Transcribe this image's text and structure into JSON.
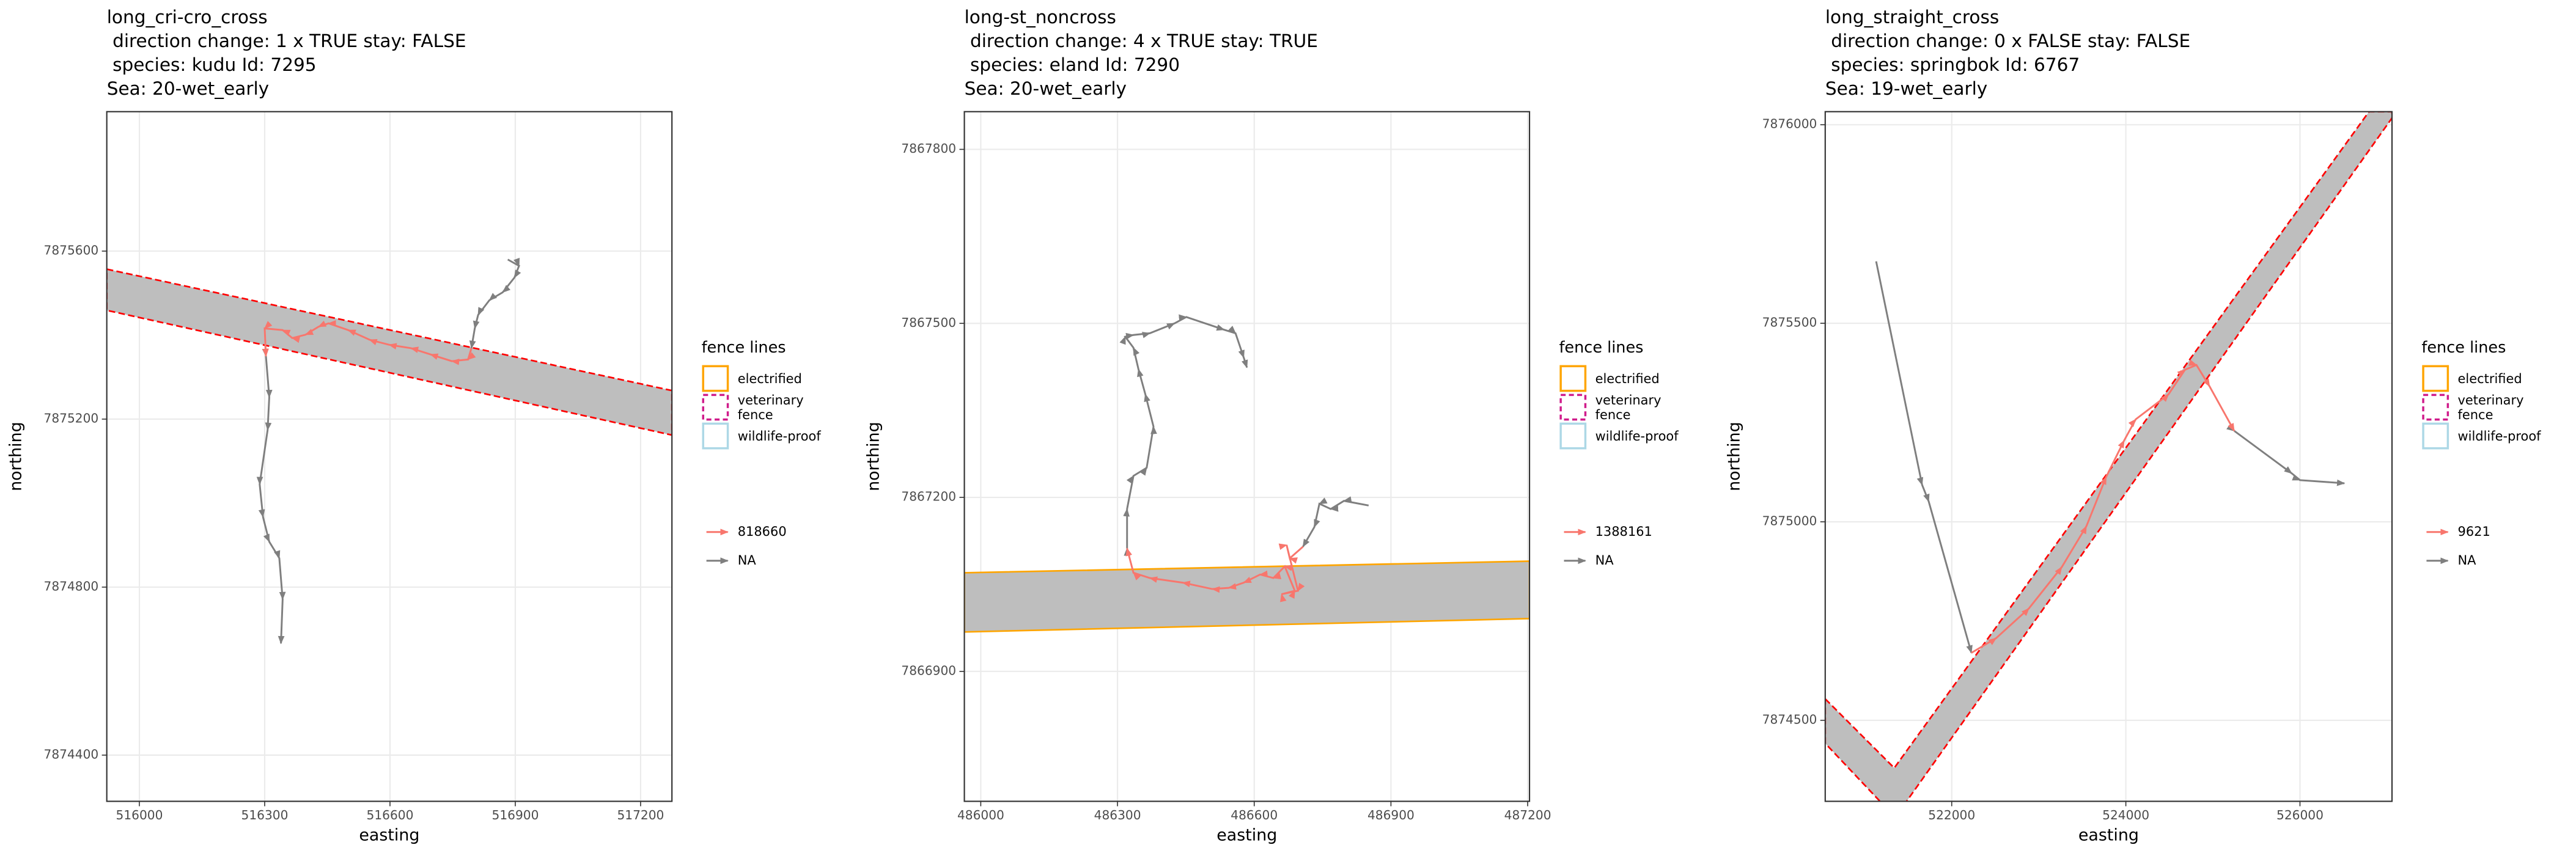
{
  "chart_data": [
    {
      "type": "line",
      "title": [
        "long_cri-cro_cross",
        " direction change: 1 x TRUE stay: FALSE",
        " species: kudu Id: 7295",
        "Sea: 20-wet_early"
      ],
      "x_label": "easting",
      "y_label": "northing",
      "xlim": [
        515922,
        517275
      ],
      "ylim": [
        7874290,
        7875932
      ],
      "xticks": [
        516000,
        516300,
        516600,
        516900,
        517200
      ],
      "yticks": [
        7874400,
        7874800,
        7875200,
        7875600
      ],
      "grid": true,
      "band": {
        "color": "#BEBEBE",
        "edge_color": "#FF0000",
        "dashed": true,
        "x": [
          515922,
          517275,
          517275,
          515922
        ],
        "y": [
          7875557,
          7875268,
          7875162,
          7875459
        ]
      },
      "legend": {
        "title": "fence lines",
        "entries": [
          {
            "label": "electrified",
            "color": "#FFA500",
            "dashed": false
          },
          {
            "label": "veterinary\nfence",
            "color": "#D01C8B",
            "dashed": true
          },
          {
            "label": "wildlife-proof",
            "color": "#ADD8E6",
            "dashed": false
          }
        ]
      },
      "series": [
        {
          "name": "818660",
          "color": "#F8766D",
          "x": [
            516795,
            516787,
            516748,
            516697,
            516650,
            516598,
            516551,
            516500,
            516453,
            516429,
            516398,
            516366,
            516343,
            516300,
            516303
          ],
          "y": [
            7875369,
            7875342,
            7875338,
            7875354,
            7875369,
            7875377,
            7875389,
            7875412,
            7875428,
            7875420,
            7875401,
            7875393,
            7875412,
            7875416,
            7875350
          ]
        },
        {
          "name": "NA",
          "color": "#7F7F7F",
          "x": [
            516882,
            516909,
            516898,
            516870,
            516838,
            516811,
            516803,
            516795,
            null,
            516303,
            516311,
            516307,
            516288,
            516296,
            516311,
            516335,
            516343,
            516339
          ],
          "y": [
            7875580,
            7875565,
            7875537,
            7875502,
            7875483,
            7875448,
            7875416,
            7875369,
            null,
            7875350,
            7875252,
            7875174,
            7875045,
            7874967,
            7874908,
            7874869,
            7874771,
            7874666
          ]
        }
      ]
    },
    {
      "type": "line",
      "title": [
        "long-st_noncross",
        " direction change: 4 x TRUE stay: TRUE",
        " species: eland Id: 7290",
        "Sea: 20-wet_early"
      ],
      "x_label": "easting",
      "y_label": "northing",
      "xlim": [
        485964,
        487204
      ],
      "ylim": [
        7866676,
        7867865
      ],
      "xticks": [
        486000,
        486300,
        486600,
        486900,
        487200
      ],
      "yticks": [
        7866900,
        7867200,
        7867500,
        7867800
      ],
      "grid": true,
      "band": {
        "color": "#BEBEBE",
        "edge_color": "#FFA500",
        "dashed": false,
        "x": [
          485964,
          487204,
          487204,
          485964
        ],
        "y": [
          7867070,
          7867090,
          7866991,
          7866968
        ]
      },
      "legend": {
        "title": "fence lines",
        "entries": [
          {
            "label": "electrified",
            "color": "#FFA500",
            "dashed": false
          },
          {
            "label": "veterinary\nfence",
            "color": "#D01C8B",
            "dashed": true
          },
          {
            "label": "wildlife-proof",
            "color": "#ADD8E6",
            "dashed": false
          }
        ]
      },
      "series": [
        {
          "name": "1388161",
          "color": "#F8766D",
          "x": [
            486707,
            486678,
            486671,
            486696,
            486660,
            486689,
            486667,
            486642,
            486613,
            486577,
            486544,
            486508,
            486443,
            486371,
            486335,
            486321
          ],
          "y": [
            7867115,
            7867095,
            7867118,
            7867039,
            7867033,
            7867039,
            7867081,
            7867061,
            7867067,
            7867053,
            7867044,
            7867042,
            7867053,
            7867061,
            7867070,
            7867112
          ]
        },
        {
          "name": "NA",
          "color": "#7F7F7F",
          "x": [
            486851,
            486797,
            486768,
            486743,
            486732,
            486707,
            null,
            486321,
            486321,
            486335,
            486364,
            486379,
            486361,
            486346,
            486335,
            486317,
            486335,
            486371,
            486425,
            486451,
            486534,
            486559,
            486577,
            486584
          ],
          "y": [
            7867186,
            7867194,
            7867180,
            7867189,
            7867149,
            7867115,
            null,
            7867112,
            7867180,
            7867237,
            7867251,
            7867322,
            7867378,
            7867421,
            7867458,
            7867477,
            7867480,
            7867483,
            7867500,
            7867511,
            7867489,
            7867483,
            7867441,
            7867424
          ]
        }
      ]
    },
    {
      "type": "line",
      "title": [
        "long_straight_cross",
        " direction change: 0 x FALSE stay: FALSE",
        " species: springbok Id: 6767",
        "Sea: 19-wet_early"
      ],
      "x_label": "easting",
      "y_label": "northing",
      "xlim": [
        520547,
        527057
      ],
      "ylim": [
        7874296,
        7876033
      ],
      "xticks": [
        522000,
        524000,
        526000
      ],
      "yticks": [
        7874500,
        7875000,
        7875500,
        7876000
      ],
      "grid": true,
      "band": {
        "color": "#BEBEBE",
        "edge_color": "#FF0000",
        "dashed": true,
        "x": [
          520547,
          521340,
          526793,
          527057,
          527057,
          521472,
          521189,
          520547
        ],
        "y": [
          7874554,
          7874380,
          7876033,
          7876033,
          7876017,
          7874293,
          7874293,
          7874442
        ]
      },
      "legend": {
        "title": "fence lines",
        "entries": [
          {
            "label": "electrified",
            "color": "#FFA500",
            "dashed": false
          },
          {
            "label": "veterinary\nfence",
            "color": "#D01C8B",
            "dashed": true
          },
          {
            "label": "wildlife-proof",
            "color": "#ADD8E6",
            "dashed": false
          }
        ]
      },
      "series": [
        {
          "name": "9621",
          "color": "#F8766D",
          "x": [
            522226,
            522510,
            522887,
            523264,
            523547,
            523774,
            523981,
            524113,
            524490,
            524679,
            524811,
            524962,
            525245
          ],
          "y": [
            7874670,
            7874707,
            7874782,
            7874886,
            7874989,
            7875113,
            7875205,
            7875258,
            7875321,
            7875383,
            7875395,
            7875341,
            7875229
          ]
        },
        {
          "name": "NA",
          "color": "#7F7F7F",
          "x": [
            521132,
            521660,
            521736,
            522226,
            null,
            525245,
            525906,
            526000,
            526510
          ],
          "y": [
            7875656,
            7875093,
            7875051,
            7874670,
            null,
            7875229,
            7875122,
            7875105,
            7875097
          ]
        }
      ]
    }
  ]
}
